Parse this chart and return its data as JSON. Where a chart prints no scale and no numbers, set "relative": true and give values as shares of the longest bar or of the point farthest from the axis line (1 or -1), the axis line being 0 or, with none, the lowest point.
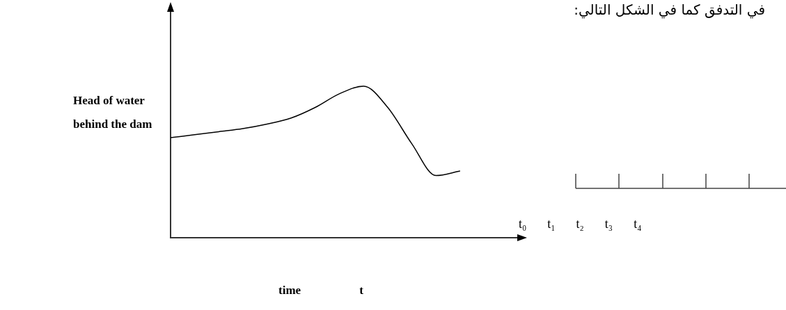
{
  "chart_data": {
    "type": "line",
    "title": "في التدفق كما في الشكل التالي:",
    "ylabel": "Head of water behind the dam",
    "xlabel": "time t",
    "relative": true,
    "tick_labels": false,
    "legend": false,
    "marker": "none",
    "line_style": "solid",
    "color": "#000000",
    "categories": [
      null,
      null,
      null,
      null,
      null,
      null,
      null,
      null,
      null,
      null,
      null,
      null,
      null
    ],
    "values": [
      0.66,
      0.68,
      0.7,
      0.72,
      0.75,
      0.79,
      0.86,
      0.95,
      1,
      0.86,
      0.62,
      0.41,
      0.44
    ],
    "annotations": [
      "t₀",
      "t₁",
      "t₂",
      "t₃",
      "t₄"
    ]
  }
}
